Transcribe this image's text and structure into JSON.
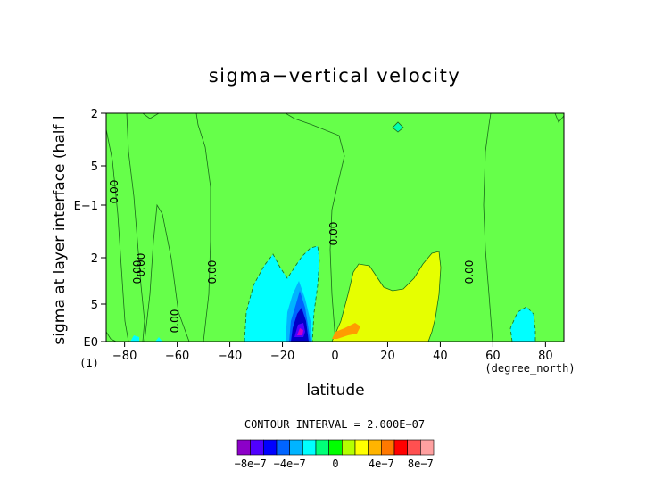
{
  "chart_data": {
    "type": "contour",
    "title": "sigma−vertical velocity",
    "xlabel": "latitude",
    "ylabel": "sigma at layer interface (half l",
    "x_units": "(degree_north)",
    "y_units": "(1)",
    "xlim": [
      -87,
      87
    ],
    "x_ticks": [
      -80,
      -60,
      -40,
      -20,
      0,
      20,
      40,
      60,
      80
    ],
    "x_tick_labels": [
      "−80",
      "−60",
      "−40",
      "−20",
      "0",
      "20",
      "40",
      "60",
      "80"
    ],
    "y_scale": "log",
    "y_tick_labels": [
      "2",
      "5",
      "E−1",
      "2",
      "5",
      "E0"
    ],
    "contour_labels": [
      "0.00",
      "0.00",
      "0.00",
      "0.00",
      "0.00",
      "0.00",
      "0.00"
    ],
    "contour_interval_text": "CONTOUR INTERVAL = 2.000E−07",
    "background_level": 0,
    "regions": [
      {
        "name": "southern-negative-lobe",
        "lat_range": [
          -40,
          -5
        ],
        "sigma_range": [
          0.2,
          1.0
        ],
        "min_value": -8e-07,
        "color": "#00ffff"
      },
      {
        "name": "southern-minimum-core",
        "lat_range": [
          -17,
          -10
        ],
        "sigma_range": [
          0.45,
          1.0
        ],
        "min_value": -8e-07,
        "color": "#0000c8"
      },
      {
        "name": "northern-positive-lobe",
        "lat_range": [
          5,
          40
        ],
        "sigma_range": [
          0.2,
          1.0
        ],
        "max_value": 4e-07,
        "color": "#dcff00"
      },
      {
        "name": "northern-positive-core",
        "lat_range": [
          0,
          10
        ],
        "sigma_range": [
          0.8,
          1.0
        ],
        "max_value": 6e-07,
        "color": "#ff8c00"
      },
      {
        "name": "polar-negative-patch",
        "lat_range": [
          68,
          76
        ],
        "sigma_range": [
          0.7,
          1.0
        ],
        "min_value": -2e-07,
        "color": "#00ffff"
      }
    ],
    "colorbar": {
      "levels": [
        "−8e−7",
        "−4e−7",
        "0",
        "4e−7",
        "8e−7"
      ],
      "tick_labels": [
        "−8e−7",
        "−4e−7",
        "0",
        "4e−7",
        "8e−7"
      ],
      "colors": [
        "#8c00c8",
        "#5000ff",
        "#0000ff",
        "#0064ff",
        "#00b4ff",
        "#00ffff",
        "#00ff78",
        "#00ff00",
        "#b4ff00",
        "#ffff00",
        "#ffb400",
        "#ff7800",
        "#ff0000",
        "#ff5050",
        "#ffa0a0"
      ]
    }
  }
}
